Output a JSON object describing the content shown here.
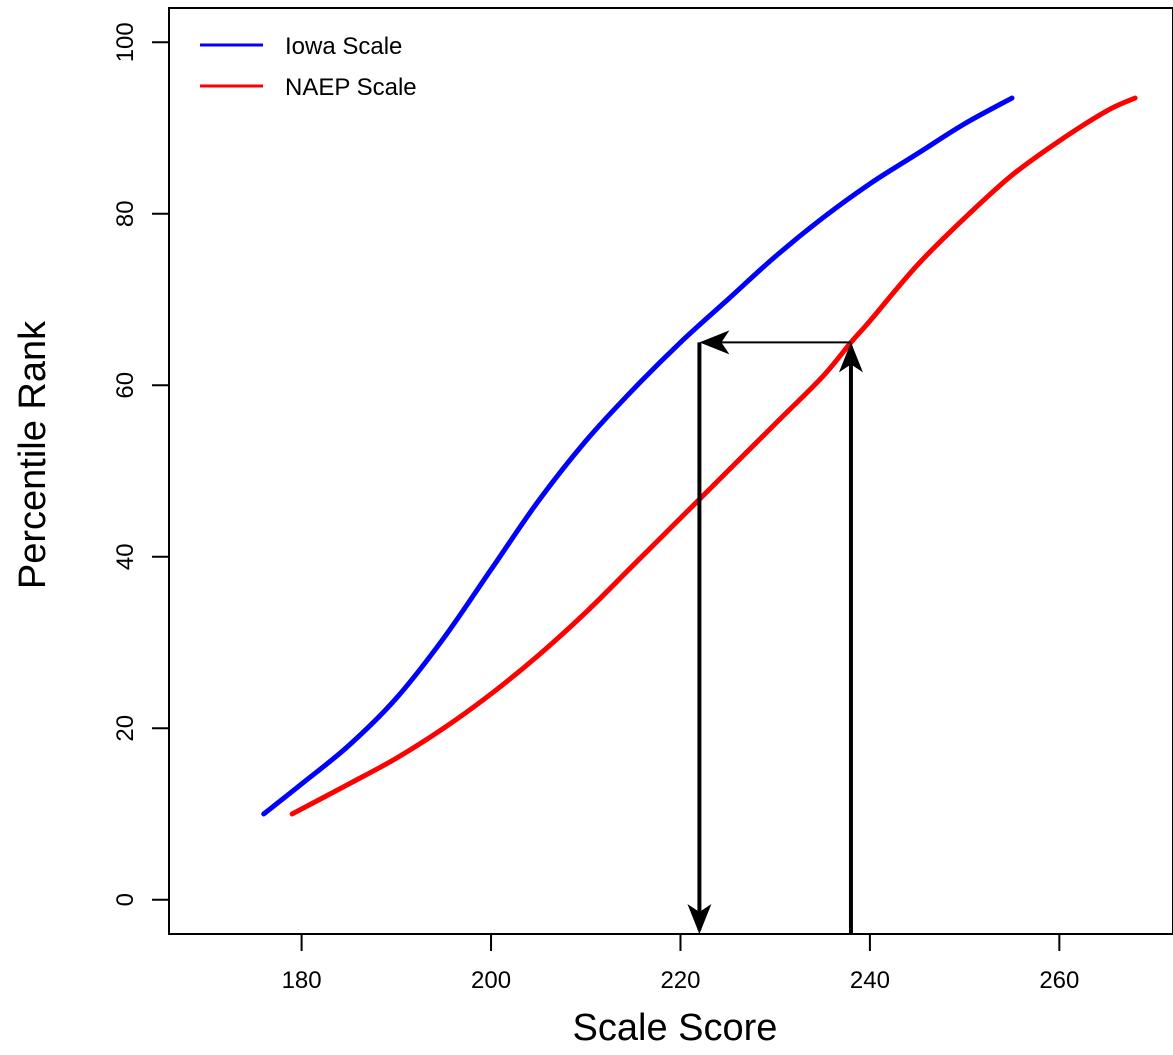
{
  "chart_data": {
    "type": "line",
    "title": "",
    "xlabel": "Scale Score",
    "ylabel": "Percentile Rank",
    "xlim": [
      166,
      272
    ],
    "ylim": [
      -4,
      104
    ],
    "x_ticks": [
      180,
      200,
      220,
      240,
      260
    ],
    "y_ticks": [
      0,
      20,
      40,
      60,
      80,
      100
    ],
    "grid": false,
    "legend_position": "top-left",
    "series": [
      {
        "name": "Iowa Scale",
        "color": "#0000ff",
        "points": [
          [
            176,
            10
          ],
          [
            180,
            13.5
          ],
          [
            185,
            18
          ],
          [
            190,
            23.5
          ],
          [
            195,
            30.5
          ],
          [
            200,
            38.5
          ],
          [
            205,
            46.5
          ],
          [
            210,
            53.5
          ],
          [
            215,
            59.5
          ],
          [
            220,
            65
          ],
          [
            225,
            70
          ],
          [
            230,
            75
          ],
          [
            235,
            79.5
          ],
          [
            240,
            83.5
          ],
          [
            245,
            87
          ],
          [
            250,
            90.5
          ],
          [
            255,
            93.5
          ]
        ]
      },
      {
        "name": "NAEP Scale",
        "color": "#ff0000",
        "points": [
          [
            179,
            10
          ],
          [
            185,
            13.5
          ],
          [
            190,
            16.5
          ],
          [
            195,
            20
          ],
          [
            200,
            24
          ],
          [
            205,
            28.5
          ],
          [
            210,
            33.5
          ],
          [
            215,
            39
          ],
          [
            220,
            44.5
          ],
          [
            225,
            50
          ],
          [
            230,
            55.5
          ],
          [
            235,
            61
          ],
          [
            238,
            65
          ],
          [
            240,
            67.5
          ],
          [
            245,
            74
          ],
          [
            250,
            79.5
          ],
          [
            255,
            84.5
          ],
          [
            260,
            88.5
          ],
          [
            265,
            92
          ],
          [
            268,
            93.5
          ]
        ]
      }
    ],
    "annotations": {
      "up_arrow_x": 238,
      "horizontal_arrow_y": 65,
      "horizontal_arrow_from_x": 238,
      "horizontal_arrow_to_x": 222,
      "down_arrow_x": 222
    }
  }
}
